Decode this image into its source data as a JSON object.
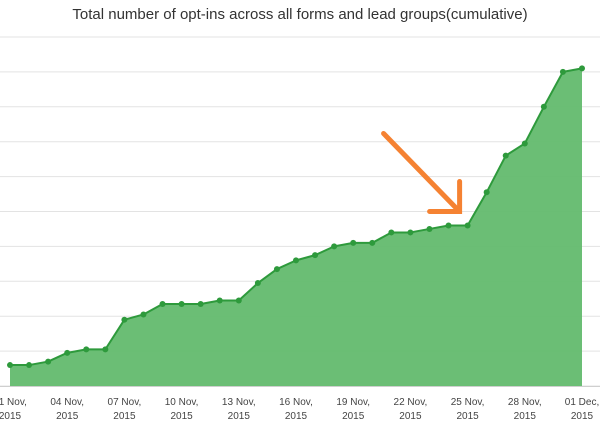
{
  "chart_data": {
    "type": "area",
    "title": "Total number of opt-ins across all forms and lead groups(cumulative)",
    "xlabel": "",
    "ylabel": "",
    "x": [
      "01 Nov, 2015",
      "02 Nov, 2015",
      "03 Nov, 2015",
      "04 Nov, 2015",
      "05 Nov, 2015",
      "06 Nov, 2015",
      "07 Nov, 2015",
      "08 Nov, 2015",
      "09 Nov, 2015",
      "10 Nov, 2015",
      "11 Nov, 2015",
      "12 Nov, 2015",
      "13 Nov, 2015",
      "14 Nov, 2015",
      "15 Nov, 2015",
      "16 Nov, 2015",
      "17 Nov, 2015",
      "18 Nov, 2015",
      "19 Nov, 2015",
      "20 Nov, 2015",
      "21 Nov, 2015",
      "22 Nov, 2015",
      "23 Nov, 2015",
      "24 Nov, 2015",
      "25 Nov, 2015",
      "26 Nov, 2015",
      "27 Nov, 2015",
      "28 Nov, 2015",
      "29 Nov, 2015",
      "30 Nov, 2015",
      "01 Dec, 2015"
    ],
    "values": [
      0.6,
      0.6,
      0.7,
      0.95,
      1.05,
      1.05,
      1.9,
      2.05,
      2.35,
      2.35,
      2.35,
      2.45,
      2.45,
      2.95,
      3.35,
      3.6,
      3.75,
      4.0,
      4.1,
      4.1,
      4.4,
      4.4,
      4.5,
      4.6,
      4.6,
      5.55,
      6.6,
      6.95,
      8.0,
      9.0,
      9.1
    ],
    "ylim": [
      0,
      10
    ],
    "y_ticks": [
      0,
      1,
      2,
      3,
      4,
      5,
      6,
      7,
      8,
      9,
      10
    ],
    "x_tick_labels": [
      {
        "index": 0,
        "line1": "01 Nov,",
        "line2": "2015"
      },
      {
        "index": 3,
        "line1": "04 Nov,",
        "line2": "2015"
      },
      {
        "index": 6,
        "line1": "07 Nov,",
        "line2": "2015"
      },
      {
        "index": 9,
        "line1": "10 Nov,",
        "line2": "2015"
      },
      {
        "index": 12,
        "line1": "13 Nov,",
        "line2": "2015"
      },
      {
        "index": 15,
        "line1": "16 Nov,",
        "line2": "2015"
      },
      {
        "index": 18,
        "line1": "19 Nov,",
        "line2": "2015"
      },
      {
        "index": 21,
        "line1": "22 Nov,",
        "line2": "2015"
      },
      {
        "index": 24,
        "line1": "25 Nov,",
        "line2": "2015"
      },
      {
        "index": 27,
        "line1": "28 Nov,",
        "line2": "2015"
      },
      {
        "index": 30,
        "line1": "01 Dec,",
        "line2": "2015"
      }
    ],
    "grid": true,
    "legend": "none",
    "colors": {
      "fill": "#63bb6e",
      "line": "#2e9a3c",
      "marker": "#2e9a3c",
      "grid": "#e3e3e3",
      "arrow": "#f58232"
    },
    "annotations": [
      {
        "type": "arrow",
        "points_to_index": 24
      }
    ]
  }
}
